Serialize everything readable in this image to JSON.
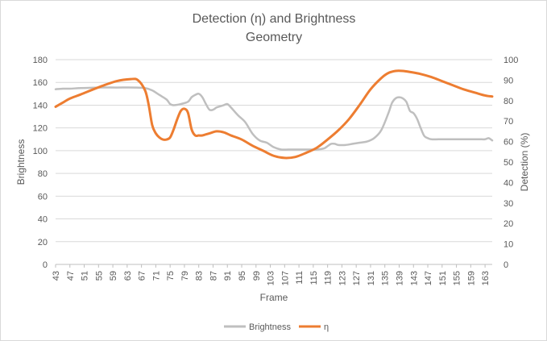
{
  "chart_data": {
    "type": "line",
    "title": [
      "Detection (η) and Brightness",
      "Geometry"
    ],
    "xlabel": "Frame",
    "ylabel_left": "Brightness",
    "ylabel_right": "Detection (%)",
    "ylim_left": [
      0,
      180
    ],
    "ylim_right": [
      0,
      100
    ],
    "yticks_left": [
      "0",
      "20",
      "40",
      "60",
      "80",
      "100",
      "120",
      "140",
      "160",
      "180"
    ],
    "yticks_right": [
      "0",
      "10",
      "20",
      "30",
      "40",
      "50",
      "60",
      "70",
      "80",
      "90",
      "100"
    ],
    "xlim": [
      43,
      165
    ],
    "xticks": [
      "43",
      "47",
      "51",
      "55",
      "59",
      "63",
      "67",
      "71",
      "75",
      "79",
      "83",
      "87",
      "91",
      "95",
      "99",
      "103",
      "107",
      "111",
      "115",
      "119",
      "123",
      "127",
      "131",
      "135",
      "139",
      "143",
      "147",
      "151",
      "155",
      "159",
      "163"
    ],
    "grid": "horizontal",
    "legend": "bottom",
    "series": [
      {
        "name": "Brightness",
        "axis": "left",
        "color": "#bfbfbf",
        "x": [
          43,
          45,
          47,
          50,
          55,
          60,
          65,
          68,
          70,
          72,
          74,
          75,
          76,
          78,
          80,
          81,
          82,
          83,
          84,
          85,
          86,
          87,
          88,
          89,
          90,
          91,
          92,
          94,
          96,
          98,
          100,
          102,
          104,
          106,
          108,
          110,
          112,
          114,
          116,
          118,
          119,
          120,
          121,
          122,
          124,
          126,
          128,
          130,
          132,
          134,
          136,
          137,
          138,
          139,
          140,
          141,
          142,
          143,
          144,
          145,
          146,
          147,
          148,
          150,
          152,
          154,
          156,
          158,
          160,
          162,
          163,
          164,
          165
        ],
        "y": [
          154,
          154.5,
          154.5,
          155,
          155.5,
          155.5,
          155.5,
          155,
          153,
          149,
          145,
          141,
          140,
          141,
          143,
          147,
          149,
          150,
          147,
          141,
          136,
          136,
          138,
          139,
          140,
          141,
          138,
          131,
          125,
          115,
          109,
          107,
          103,
          101,
          101,
          101,
          101,
          101,
          101,
          102,
          104,
          106,
          106,
          105,
          105,
          106,
          107,
          108,
          111,
          118,
          133,
          142,
          146,
          147,
          146,
          143,
          135,
          133,
          128,
          120,
          113,
          111,
          110,
          110,
          110,
          110,
          110,
          110,
          110,
          110,
          110,
          111,
          109
        ]
      },
      {
        "name": "η",
        "axis": "right",
        "color": "#ed7d31",
        "x": [
          43,
          45,
          47,
          50,
          55,
          60,
          64,
          66,
          68,
          69,
          70,
          71,
          72,
          73,
          74,
          75,
          76,
          77,
          78,
          79,
          80,
          81,
          82,
          83,
          84,
          86,
          88,
          90,
          92,
          95,
          98,
          101,
          104,
          107,
          110,
          113,
          116,
          119,
          122,
          125,
          128,
          131,
          134,
          136,
          138,
          140,
          142,
          145,
          148,
          151,
          154,
          157,
          160,
          163,
          165
        ],
        "y": [
          77,
          79,
          81,
          83,
          86.5,
          89.5,
          90.5,
          90,
          85,
          78,
          68,
          64,
          62,
          61,
          61,
          62,
          66,
          71,
          75,
          76,
          74,
          66,
          63,
          63,
          63,
          64,
          65,
          64.5,
          63,
          61,
          58,
          55.5,
          53,
          52,
          52.5,
          54.5,
          57,
          61,
          65.5,
          71,
          78,
          85.5,
          91,
          93.5,
          94.5,
          94.5,
          94,
          93,
          91.5,
          89.5,
          87.5,
          85.5,
          84,
          82.5,
          82
        ]
      }
    ]
  }
}
